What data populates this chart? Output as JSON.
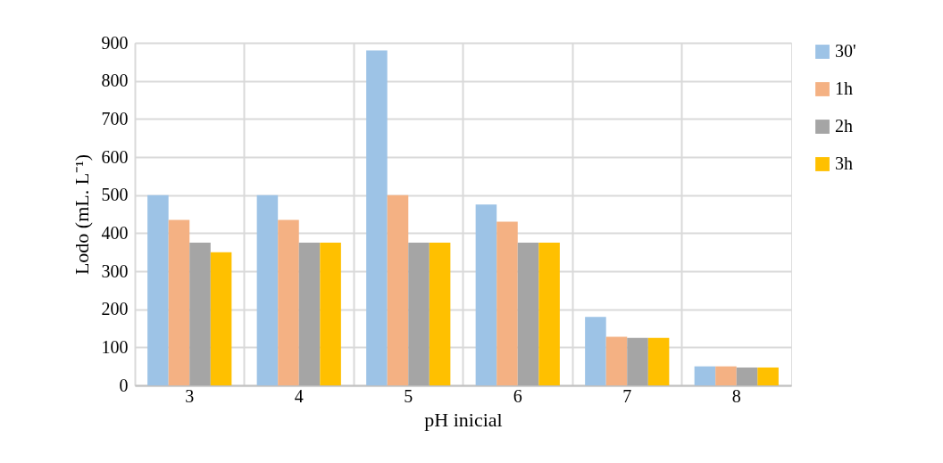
{
  "chart_data": {
    "type": "bar",
    "xlabel": "pH inicial",
    "ylabel": "Lodo (mL. L⁻¹)",
    "categories": [
      "3",
      "4",
      "5",
      "6",
      "7",
      "8"
    ],
    "series": [
      {
        "name": "30'",
        "color": "#9dc3e6",
        "values": [
          500,
          500,
          880,
          475,
          180,
          50
        ]
      },
      {
        "name": "1h",
        "color": "#f4b183",
        "values": [
          435,
          435,
          500,
          430,
          128,
          50
        ]
      },
      {
        "name": "2h",
        "color": "#a5a5a5",
        "values": [
          375,
          375,
          375,
          375,
          125,
          47
        ]
      },
      {
        "name": "3h",
        "color": "#ffc000",
        "values": [
          350,
          375,
          375,
          375,
          125,
          47
        ]
      }
    ],
    "ylim": [
      0,
      900
    ],
    "yticks": [
      0,
      100,
      200,
      300,
      400,
      500,
      600,
      700,
      800,
      900
    ],
    "grid": true,
    "legend": "right"
  }
}
